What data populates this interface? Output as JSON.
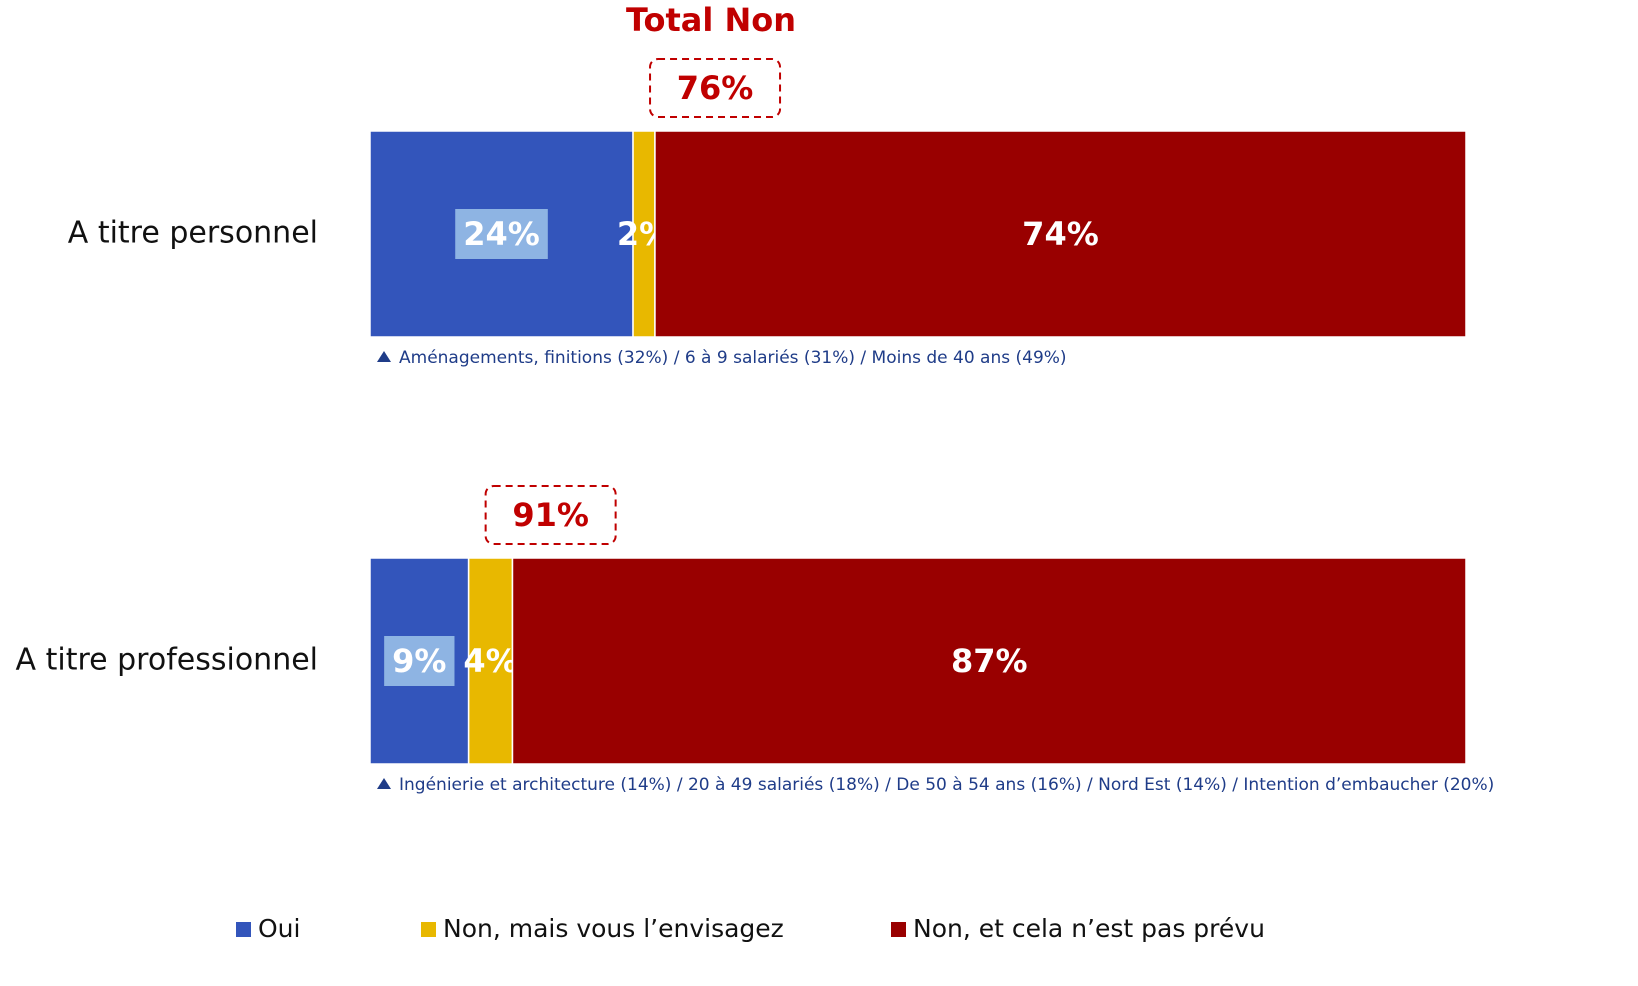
{
  "chart_data": {
    "type": "bar",
    "orientation": "horizontal",
    "stacked": true,
    "categories": [
      "A titre personnel",
      "A titre professionnel"
    ],
    "xlim": [
      0,
      100
    ],
    "series": [
      {
        "name": "Oui",
        "color": "#3355bb",
        "values": [
          24,
          9
        ],
        "value_labels": [
          "24%",
          "9%"
        ]
      },
      {
        "name": "Non, mais vous l’envisagez",
        "color": "#e8b800",
        "values": [
          2,
          4
        ],
        "value_labels": [
          "2%",
          "4%"
        ]
      },
      {
        "name": "Non, et cela n’est pas prévu",
        "color": "#990000",
        "values": [
          74,
          87
        ],
        "value_labels": [
          "74%",
          "87%"
        ]
      }
    ],
    "totals": {
      "label": "Total Non",
      "values": [
        76,
        91
      ],
      "value_labels": [
        "76%",
        "91%"
      ]
    },
    "notes": [
      "Aménagements, finitions (32%) / 6 à 9 salariés (31%) / Moins de 40 ans (49%)",
      "Ingénierie et architecture (14%) / 20 à 49 salariés (18%) / De 50 à 54 ans (16%) / Nord Est (14%) / Intention d’embaucher (20%)"
    ]
  }
}
